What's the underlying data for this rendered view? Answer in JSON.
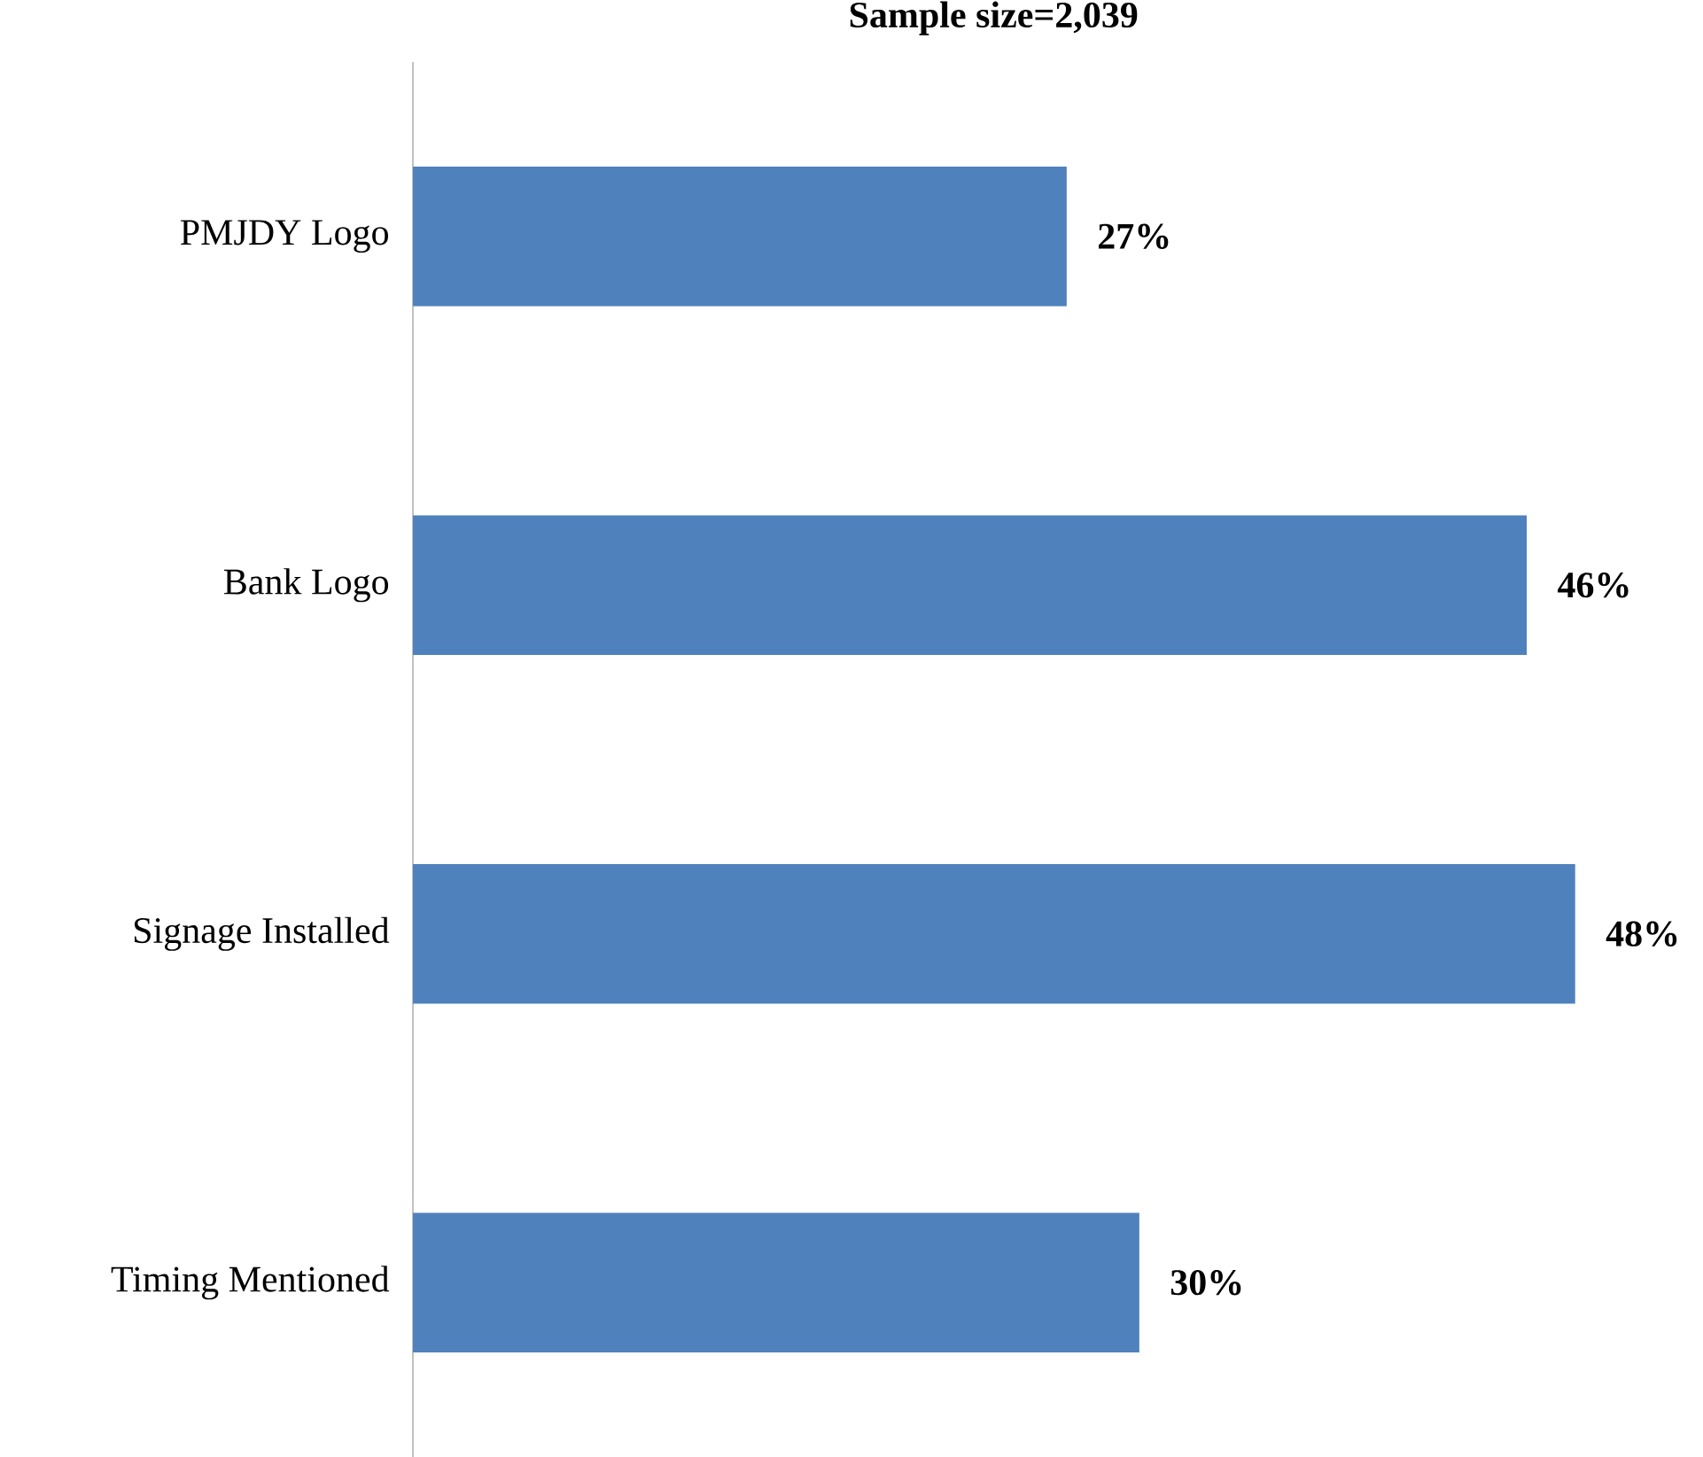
{
  "chart_data": {
    "type": "bar",
    "orientation": "horizontal",
    "title": "Sample size=2,039",
    "categories": [
      "PMJDY Logo",
      "Bank Logo",
      "Signage Installed",
      "Timing Mentioned"
    ],
    "values": [
      27,
      46,
      48,
      30
    ],
    "value_labels": [
      "27%",
      "46%",
      "48%",
      "30%"
    ],
    "color": "#4f81bd",
    "grid": false
  }
}
